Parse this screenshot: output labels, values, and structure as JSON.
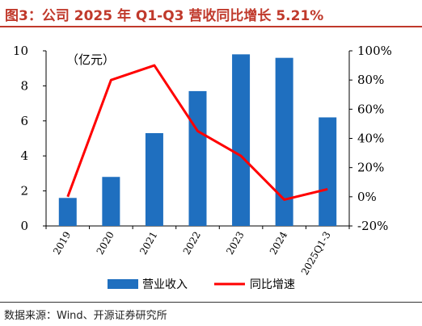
{
  "title": "图3：公司 2025 年 Q1-Q3 营收同比增长 5.21%",
  "source": "数据来源：Wind、开源证券研究所",
  "unit_label": "（亿元）",
  "colors": {
    "bar": "#1f6fbf",
    "line": "#ff0000",
    "title": "#c0392b"
  },
  "chart_data": {
    "type": "bar",
    "categories": [
      "2019",
      "2020",
      "2021",
      "2022",
      "2023",
      "2024",
      "2025Q1-3"
    ],
    "series": [
      {
        "name": "营业收入",
        "type": "bar",
        "axis": "left",
        "values": [
          1.6,
          2.8,
          5.3,
          7.7,
          9.8,
          9.6,
          6.2
        ]
      },
      {
        "name": "同比增速",
        "type": "line",
        "axis": "right",
        "values": [
          0,
          80,
          90,
          45,
          28,
          -2,
          5.21
        ]
      }
    ],
    "left_axis": {
      "ylim": [
        0,
        10
      ],
      "ticks": [
        "0",
        "2",
        "4",
        "6",
        "8",
        "10"
      ]
    },
    "right_axis": {
      "ylim": [
        -20,
        100
      ],
      "ticks": [
        "-20%",
        "0%",
        "20%",
        "40%",
        "60%",
        "80%",
        "100%"
      ]
    },
    "legend": "bottom-center",
    "grid": false
  }
}
